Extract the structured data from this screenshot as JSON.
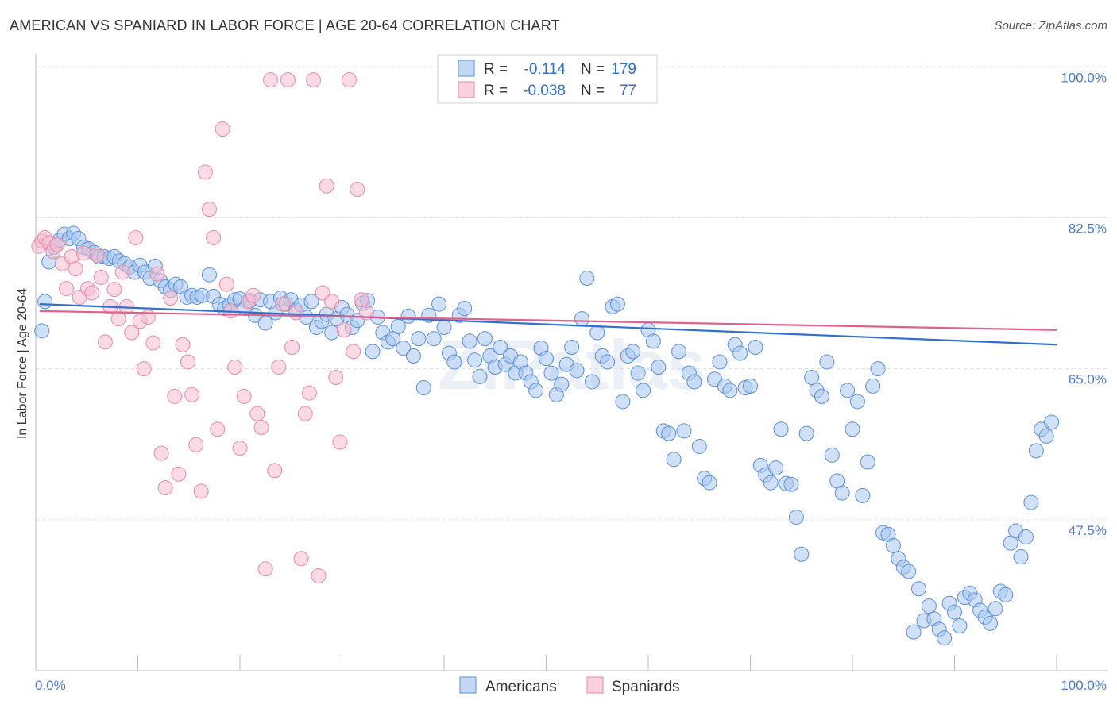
{
  "header": {
    "title": "AMERICAN VS SPANIARD IN LABOR FORCE | AGE 20-64 CORRELATION CHART",
    "source": "Source: ZipAtlas.com"
  },
  "watermark": "ZIPatlas",
  "colors": {
    "americans_fill": "#a9c8f0",
    "americans_stroke": "#5b8fd6",
    "americans_line": "#2f6fd0",
    "spaniards_fill": "#f6bccd",
    "spaniards_stroke": "#e88aa6",
    "spaniards_line": "#e0628c",
    "tick_label": "#4a7cc9",
    "grid": "#dddddd"
  },
  "legend": {
    "r_label": "R =",
    "n_label": "N =",
    "rows": [
      {
        "series": "Americans",
        "r": "-0.114",
        "n": "179"
      },
      {
        "series": "Spaniards",
        "r": "-0.038",
        "n": "77"
      }
    ]
  },
  "chart_data": {
    "type": "scatter",
    "title": "AMERICAN VS SPANIARD IN LABOR FORCE | AGE 20-64 CORRELATION CHART",
    "xlabel": "",
    "ylabel": "In Labor Force | Age 20-64",
    "xlim": [
      0,
      100
    ],
    "ylim": [
      30,
      101.5
    ],
    "x_tick_labels": [
      "0.0%",
      "100.0%"
    ],
    "y_ticks": [
      47.5,
      65.0,
      82.5,
      100.0
    ],
    "y_tick_labels": [
      "47.5%",
      "65.0%",
      "82.5%",
      "100.0%"
    ],
    "grid": true,
    "legend_position": "top-center",
    "series": [
      {
        "name": "Americans",
        "trend": {
          "x": [
            0,
            100
          ],
          "y": [
            72.5,
            67.8
          ]
        },
        "points": [
          [
            0.6,
            69.4
          ],
          [
            0.9,
            72.8
          ],
          [
            1.3,
            77.4
          ],
          [
            1.8,
            79.1
          ],
          [
            2.3,
            79.9
          ],
          [
            2.8,
            80.6
          ],
          [
            3.3,
            80.1
          ],
          [
            3.7,
            80.7
          ],
          [
            4.2,
            80.1
          ],
          [
            4.7,
            79.1
          ],
          [
            5.2,
            78.9
          ],
          [
            5.7,
            78.5
          ],
          [
            6.2,
            78.0
          ],
          [
            6.7,
            78.0
          ],
          [
            7.2,
            77.8
          ],
          [
            7.7,
            78.0
          ],
          [
            8.2,
            77.5
          ],
          [
            8.7,
            77.2
          ],
          [
            9.2,
            76.8
          ],
          [
            9.7,
            76.2
          ],
          [
            10.2,
            77.0
          ],
          [
            10.7,
            76.2
          ],
          [
            11.2,
            75.5
          ],
          [
            11.7,
            76.9
          ],
          [
            12.2,
            75.2
          ],
          [
            12.7,
            74.5
          ],
          [
            13.2,
            74.1
          ],
          [
            13.7,
            74.8
          ],
          [
            14.2,
            74.5
          ],
          [
            14.8,
            73.3
          ],
          [
            15.3,
            73.5
          ],
          [
            15.8,
            73.3
          ],
          [
            16.3,
            73.5
          ],
          [
            17.0,
            75.9
          ],
          [
            17.4,
            73.4
          ],
          [
            18.0,
            72.5
          ],
          [
            18.5,
            72.0
          ],
          [
            19.0,
            72.4
          ],
          [
            19.5,
            73.0
          ],
          [
            20.0,
            73.1
          ],
          [
            20.5,
            72.0
          ],
          [
            21.0,
            72.9
          ],
          [
            21.5,
            71.2
          ],
          [
            22.0,
            73.0
          ],
          [
            22.5,
            70.3
          ],
          [
            23.0,
            72.8
          ],
          [
            23.5,
            71.5
          ],
          [
            24.0,
            73.2
          ],
          [
            24.5,
            72.5
          ],
          [
            25.0,
            73.0
          ],
          [
            25.5,
            71.8
          ],
          [
            26.0,
            72.4
          ],
          [
            26.5,
            71.0
          ],
          [
            27.0,
            72.8
          ],
          [
            27.5,
            69.8
          ],
          [
            28.0,
            70.5
          ],
          [
            28.5,
            71.3
          ],
          [
            29.0,
            69.2
          ],
          [
            29.5,
            70.8
          ],
          [
            30.0,
            72.1
          ],
          [
            30.5,
            71.3
          ],
          [
            31.0,
            69.8
          ],
          [
            31.5,
            70.6
          ],
          [
            32.0,
            72.6
          ],
          [
            32.5,
            72.9
          ],
          [
            33.0,
            67.0
          ],
          [
            33.5,
            71.0
          ],
          [
            34.0,
            69.2
          ],
          [
            34.5,
            68.1
          ],
          [
            35.0,
            68.5
          ],
          [
            35.5,
            69.9
          ],
          [
            36.0,
            67.4
          ],
          [
            36.5,
            71.1
          ],
          [
            37.0,
            66.5
          ],
          [
            37.5,
            68.5
          ],
          [
            38.0,
            62.8
          ],
          [
            38.5,
            71.2
          ],
          [
            39.0,
            68.5
          ],
          [
            39.5,
            72.5
          ],
          [
            40.0,
            69.8
          ],
          [
            40.5,
            66.8
          ],
          [
            41.0,
            65.8
          ],
          [
            41.5,
            71.2
          ],
          [
            42.0,
            72.0
          ],
          [
            42.5,
            68.2
          ],
          [
            43.0,
            66.0
          ],
          [
            43.5,
            64.1
          ],
          [
            44.0,
            68.5
          ],
          [
            44.5,
            66.5
          ],
          [
            45.0,
            65.2
          ],
          [
            45.5,
            67.5
          ],
          [
            46.0,
            65.5
          ],
          [
            46.5,
            66.5
          ],
          [
            47.0,
            64.5
          ],
          [
            47.5,
            65.8
          ],
          [
            48.0,
            64.5
          ],
          [
            48.5,
            63.5
          ],
          [
            49.0,
            62.5
          ],
          [
            49.5,
            67.4
          ],
          [
            50.0,
            66.2
          ],
          [
            50.5,
            64.5
          ],
          [
            51.0,
            62.0
          ],
          [
            51.5,
            63.2
          ],
          [
            52.0,
            65.5
          ],
          [
            52.5,
            67.5
          ],
          [
            53.0,
            64.8
          ],
          [
            53.5,
            70.8
          ],
          [
            54.0,
            75.5
          ],
          [
            54.5,
            63.5
          ],
          [
            55.0,
            69.2
          ],
          [
            55.5,
            66.5
          ],
          [
            56.0,
            65.8
          ],
          [
            56.5,
            72.2
          ],
          [
            57.0,
            72.5
          ],
          [
            57.5,
            61.2
          ],
          [
            58.0,
            66.5
          ],
          [
            58.5,
            67.0
          ],
          [
            59.0,
            64.5
          ],
          [
            59.5,
            62.5
          ],
          [
            60.0,
            69.5
          ],
          [
            60.5,
            68.2
          ],
          [
            61.0,
            65.2
          ],
          [
            61.5,
            57.8
          ],
          [
            62.0,
            57.5
          ],
          [
            62.5,
            54.5
          ],
          [
            63.0,
            67.0
          ],
          [
            63.5,
            57.8
          ],
          [
            64.0,
            64.5
          ],
          [
            64.5,
            63.5
          ],
          [
            65.0,
            56.0
          ],
          [
            65.5,
            52.3
          ],
          [
            66.0,
            51.8
          ],
          [
            66.5,
            63.8
          ],
          [
            67.0,
            65.8
          ],
          [
            67.5,
            63.0
          ],
          [
            68.0,
            62.5
          ],
          [
            68.5,
            67.8
          ],
          [
            69.0,
            66.8
          ],
          [
            69.5,
            62.8
          ],
          [
            70.0,
            63.0
          ],
          [
            70.5,
            67.5
          ],
          [
            71.0,
            53.8
          ],
          [
            71.5,
            52.7
          ],
          [
            72.0,
            51.8
          ],
          [
            72.5,
            53.5
          ],
          [
            73.0,
            58.0
          ],
          [
            73.5,
            51.7
          ],
          [
            74.0,
            51.6
          ],
          [
            74.5,
            47.8
          ],
          [
            75.0,
            43.5
          ],
          [
            75.5,
            57.5
          ],
          [
            76.0,
            64.0
          ],
          [
            76.5,
            62.5
          ],
          [
            77.0,
            61.8
          ],
          [
            77.5,
            65.8
          ],
          [
            78.0,
            55.0
          ],
          [
            78.5,
            52.0
          ],
          [
            79.0,
            50.6
          ],
          [
            79.5,
            62.5
          ],
          [
            80.0,
            58.0
          ],
          [
            80.5,
            61.2
          ],
          [
            81.0,
            50.3
          ],
          [
            81.5,
            54.2
          ],
          [
            82.0,
            63.0
          ],
          [
            82.5,
            65.0
          ],
          [
            83.0,
            46.0
          ],
          [
            83.5,
            45.8
          ],
          [
            84.0,
            44.5
          ],
          [
            84.5,
            43.0
          ],
          [
            85.0,
            42.0
          ],
          [
            85.5,
            41.5
          ],
          [
            86.0,
            34.5
          ],
          [
            86.5,
            39.5
          ],
          [
            87.0,
            35.8
          ],
          [
            87.5,
            37.5
          ],
          [
            88.0,
            36.0
          ],
          [
            88.5,
            34.8
          ],
          [
            89.0,
            33.8
          ],
          [
            89.5,
            37.8
          ],
          [
            90.0,
            36.8
          ],
          [
            90.5,
            35.2
          ],
          [
            91.0,
            38.5
          ],
          [
            91.5,
            39.0
          ],
          [
            92.0,
            38.2
          ],
          [
            92.5,
            37.0
          ],
          [
            93.0,
            36.2
          ],
          [
            93.5,
            35.5
          ],
          [
            94.0,
            37.2
          ],
          [
            94.5,
            39.2
          ],
          [
            95.0,
            38.8
          ],
          [
            95.5,
            44.8
          ],
          [
            96.0,
            46.2
          ],
          [
            96.5,
            43.2
          ],
          [
            97.0,
            45.5
          ],
          [
            97.5,
            49.5
          ],
          [
            98.0,
            55.5
          ],
          [
            98.5,
            58.0
          ],
          [
            99.0,
            57.2
          ],
          [
            99.5,
            58.8
          ]
        ]
      },
      {
        "name": "Spaniards",
        "trend": {
          "x": [
            0,
            100
          ],
          "y": [
            71.7,
            69.5
          ]
        },
        "points": [
          [
            0.3,
            79.2
          ],
          [
            0.6,
            79.8
          ],
          [
            0.9,
            80.2
          ],
          [
            1.3,
            79.6
          ],
          [
            1.7,
            78.6
          ],
          [
            2.1,
            79.4
          ],
          [
            2.6,
            77.2
          ],
          [
            3.0,
            74.3
          ],
          [
            3.5,
            78.0
          ],
          [
            3.9,
            76.6
          ],
          [
            4.3,
            73.3
          ],
          [
            4.7,
            78.4
          ],
          [
            5.1,
            74.3
          ],
          [
            5.5,
            73.8
          ],
          [
            6.0,
            78.2
          ],
          [
            6.4,
            75.6
          ],
          [
            6.8,
            68.1
          ],
          [
            7.3,
            72.2
          ],
          [
            7.7,
            74.2
          ],
          [
            8.1,
            70.8
          ],
          [
            8.5,
            76.2
          ],
          [
            8.9,
            72.2
          ],
          [
            9.4,
            69.2
          ],
          [
            9.8,
            80.2
          ],
          [
            10.2,
            70.5
          ],
          [
            10.6,
            65.0
          ],
          [
            11.0,
            71.0
          ],
          [
            11.5,
            68.0
          ],
          [
            11.9,
            76.0
          ],
          [
            12.3,
            55.2
          ],
          [
            12.7,
            51.2
          ],
          [
            13.2,
            73.2
          ],
          [
            13.6,
            61.8
          ],
          [
            14.0,
            52.8
          ],
          [
            14.4,
            67.8
          ],
          [
            14.9,
            65.8
          ],
          [
            15.3,
            62.0
          ],
          [
            15.7,
            56.2
          ],
          [
            16.2,
            50.8
          ],
          [
            16.6,
            87.8
          ],
          [
            17.0,
            83.5
          ],
          [
            17.4,
            80.2
          ],
          [
            17.8,
            58.0
          ],
          [
            18.3,
            92.8
          ],
          [
            18.7,
            74.8
          ],
          [
            19.1,
            71.7
          ],
          [
            19.5,
            65.2
          ],
          [
            20.0,
            55.8
          ],
          [
            20.4,
            61.8
          ],
          [
            20.8,
            72.8
          ],
          [
            21.3,
            73.5
          ],
          [
            21.7,
            59.8
          ],
          [
            22.1,
            58.2
          ],
          [
            22.5,
            41.8
          ],
          [
            23.0,
            98.5
          ],
          [
            23.4,
            53.2
          ],
          [
            23.8,
            65.2
          ],
          [
            24.2,
            72.5
          ],
          [
            24.7,
            98.5
          ],
          [
            25.1,
            67.5
          ],
          [
            25.5,
            71.5
          ],
          [
            26.0,
            43.0
          ],
          [
            26.4,
            59.8
          ],
          [
            26.8,
            62.2
          ],
          [
            27.2,
            98.5
          ],
          [
            27.7,
            41.0
          ],
          [
            28.1,
            73.8
          ],
          [
            28.5,
            86.2
          ],
          [
            29.0,
            72.8
          ],
          [
            29.4,
            64.0
          ],
          [
            29.8,
            56.5
          ],
          [
            30.2,
            69.5
          ],
          [
            30.7,
            98.5
          ],
          [
            31.1,
            67.0
          ],
          [
            31.5,
            85.8
          ],
          [
            31.9,
            73.0
          ],
          [
            32.4,
            71.5
          ]
        ]
      }
    ]
  },
  "bottom_legend": {
    "items": [
      {
        "label": "Americans"
      },
      {
        "label": "Spaniards"
      }
    ]
  }
}
